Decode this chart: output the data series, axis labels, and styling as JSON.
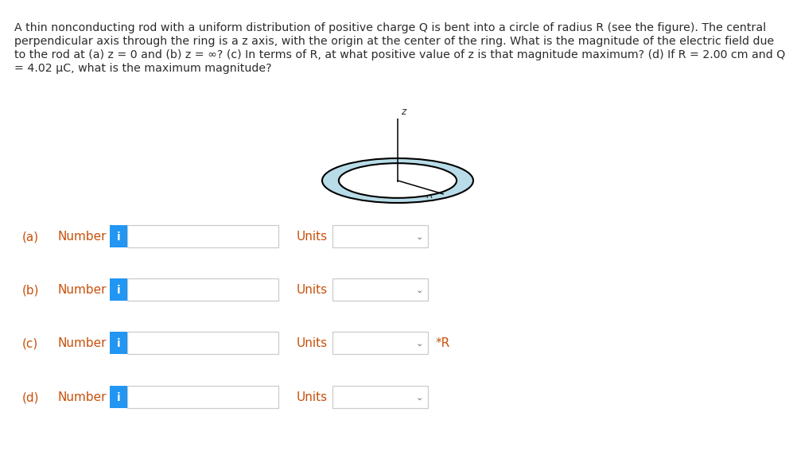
{
  "background_color": "#ffffff",
  "text_color": "#2c2c2c",
  "problem_text_line1": "A thin nonconducting rod with a uniform distribution of positive charge Q is bent into a circle of radius R (see the figure). The central",
  "problem_text_line2": "perpendicular axis through the ring is a z axis, with the origin at the center of the ring. What is the magnitude of the electric field due",
  "problem_text_line3": "to the rod at (a) z = 0 and (b) z = ∞? (c) In terms of R, at what positive value of z is that magnitude maximum? (d) If R = 2.00 cm and Q",
  "problem_text_line4": "= 4.02 μC, what is the maximum magnitude?",
  "label_color": "#c8500a",
  "number_label": "Number",
  "units_label": "Units",
  "info_button_color": "#2196F3",
  "info_button_text": "i",
  "box_fill": "#ffffff",
  "box_border": "#cccccc",
  "rows": [
    {
      "letter": "(a)",
      "suffix": ""
    },
    {
      "letter": "(b)",
      "suffix": ""
    },
    {
      "letter": "(c)",
      "suffix": "*R"
    },
    {
      "letter": "(d)",
      "suffix": ""
    }
  ],
  "ring_color": "#000000",
  "ring_fill": "#b8dce8",
  "z_label": "z",
  "R_label": "R"
}
